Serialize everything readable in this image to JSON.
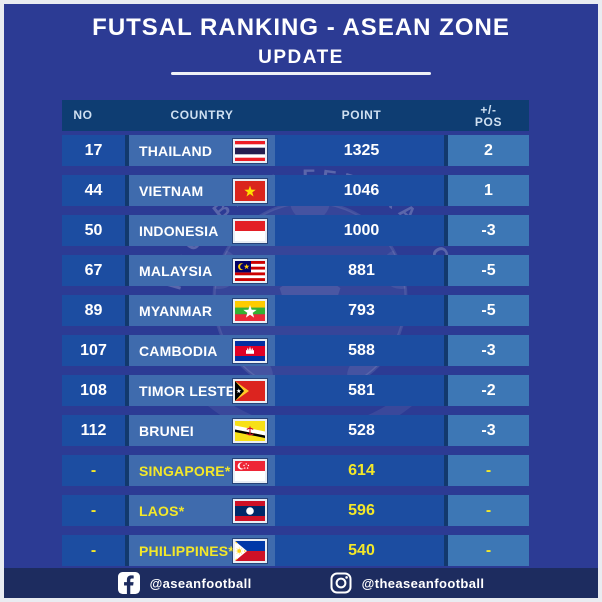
{
  "header": {
    "title": "FUTSAL RANKING - ASEAN ZONE",
    "subtitle": "UPDATE"
  },
  "table": {
    "headers": {
      "no": "NO",
      "country": "COUNTRY",
      "point": "POINT",
      "pos_top": "+/-",
      "pos_bottom": "POS"
    },
    "rows": [
      {
        "no": "17",
        "country": "THAILAND",
        "flag": "thailand-flag",
        "point": "1325",
        "pos": "2",
        "highlight": false
      },
      {
        "no": "44",
        "country": "VIETNAM",
        "flag": "vietnam-flag",
        "point": "1046",
        "pos": "1",
        "highlight": false
      },
      {
        "no": "50",
        "country": "INDONESIA",
        "flag": "indonesia-flag",
        "point": "1000",
        "pos": "-3",
        "highlight": false
      },
      {
        "no": "67",
        "country": "MALAYSIA",
        "flag": "malaysia-flag",
        "point": "881",
        "pos": "-5",
        "highlight": false
      },
      {
        "no": "89",
        "country": "MYANMAR",
        "flag": "myanmar-flag",
        "point": "793",
        "pos": "-5",
        "highlight": false
      },
      {
        "no": "107",
        "country": "CAMBODIA",
        "flag": "cambodia-flag",
        "point": "588",
        "pos": "-3",
        "highlight": false
      },
      {
        "no": "108",
        "country": "TIMOR LESTE",
        "flag": "timor-leste-flag",
        "point": "581",
        "pos": "-2",
        "highlight": false
      },
      {
        "no": "112",
        "country": "BRUNEI",
        "flag": "brunei-flag",
        "point": "528",
        "pos": "-3",
        "highlight": false
      },
      {
        "no": "-",
        "country": "SINGAPORE*",
        "flag": "singapore-flag",
        "point": "614",
        "pos": "-",
        "highlight": true
      },
      {
        "no": "-",
        "country": "LAOS*",
        "flag": "laos-flag",
        "point": "596",
        "pos": "-",
        "highlight": true
      },
      {
        "no": "-",
        "country": "PHILIPPINES*",
        "flag": "philippines-flag",
        "point": "540",
        "pos": "-",
        "highlight": true
      }
    ]
  },
  "watermark": {
    "arc_text": "FOOTBALL FEDERATION"
  },
  "footer": {
    "facebook_handle": "@aseanfootball",
    "instagram_handle": "@theaseanfootball"
  },
  "colors": {
    "background": "#2c3b94",
    "table_header_bg": "#0e3d72",
    "header_text": "#cfe0f1",
    "row_bg": "#1c4da1",
    "country_cell_bg": "#3f6bad",
    "pos_cell_bg": "#3d77b5",
    "divider": "#12396d",
    "footer_bg": "#1d2c5f",
    "text": "#ffffff",
    "highlight_text": "#f3e829",
    "border": "#e9ecf1"
  },
  "chart_data": {
    "type": "table",
    "title": "FUTSAL RANKING - ASEAN ZONE UPDATE",
    "columns": [
      "NO",
      "COUNTRY",
      "POINT",
      "+/- POS"
    ],
    "rows": [
      [
        "17",
        "THAILAND",
        1325,
        "2"
      ],
      [
        "44",
        "VIETNAM",
        1046,
        "1"
      ],
      [
        "50",
        "INDONESIA",
        1000,
        "-3"
      ],
      [
        "67",
        "MALAYSIA",
        881,
        "-5"
      ],
      [
        "89",
        "MYANMAR",
        793,
        "-5"
      ],
      [
        "107",
        "CAMBODIA",
        588,
        "-3"
      ],
      [
        "108",
        "TIMOR LESTE",
        581,
        "-2"
      ],
      [
        "112",
        "BRUNEI",
        528,
        "-3"
      ],
      [
        "-",
        "SINGAPORE*",
        614,
        "-"
      ],
      [
        "-",
        "LAOS*",
        596,
        "-"
      ],
      [
        "-",
        "PHILIPPINES*",
        540,
        "-"
      ]
    ]
  }
}
